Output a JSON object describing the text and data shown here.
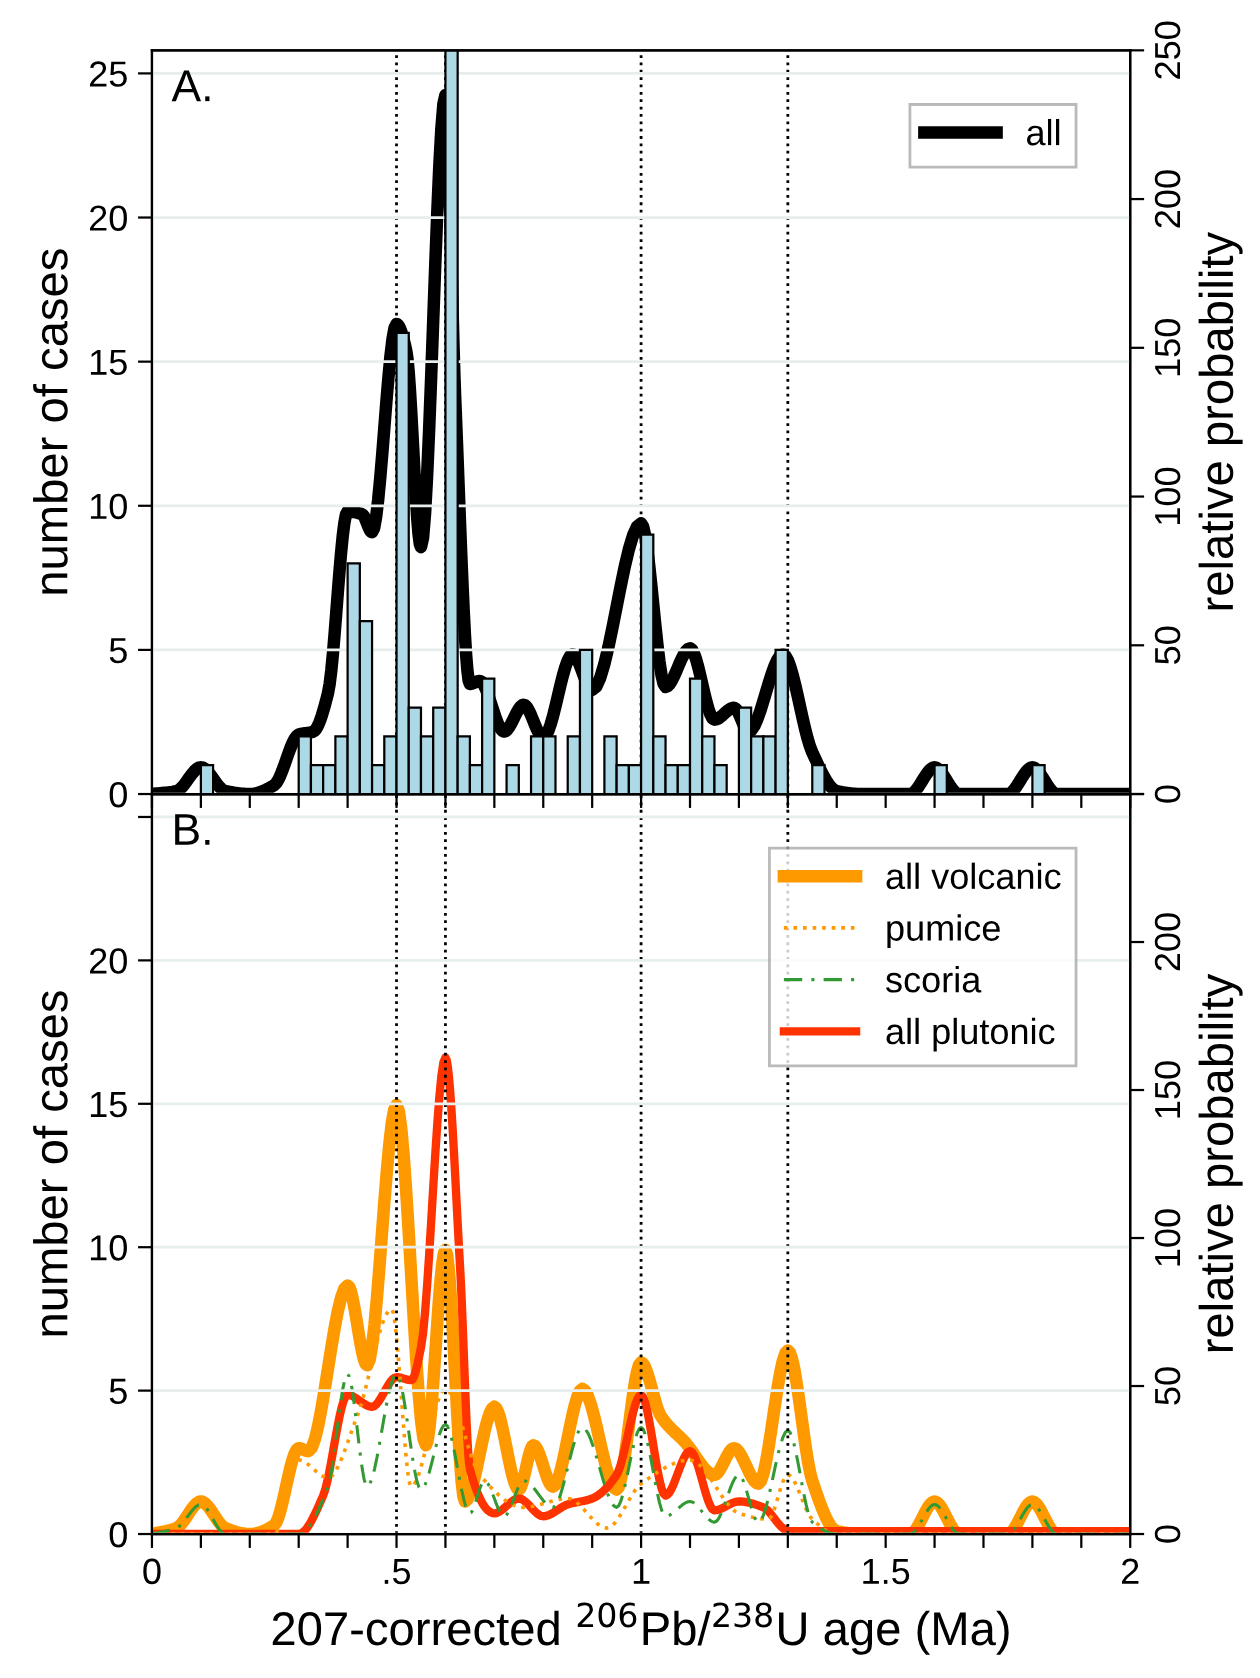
{
  "chart_data": [
    {
      "type": "histogram",
      "ylabel": "number of cases",
      "y2label": "relative probability",
      "annotations": [
        "A."
      ],
      "xlim": [
        0,
        2
      ],
      "xticks": [
        {
          "value": 0,
          "label": null
        },
        {
          "value": 0.1,
          "label": null
        },
        {
          "value": 0.2,
          "label": null
        },
        {
          "value": 0.3,
          "label": null
        },
        {
          "value": 0.4,
          "label": null
        },
        {
          "value": 0.5,
          "label": null
        },
        {
          "value": 0.6,
          "label": null
        },
        {
          "value": 0.7,
          "label": null
        },
        {
          "value": 0.8,
          "label": null
        },
        {
          "value": 0.9,
          "label": null
        },
        {
          "value": 1,
          "label": null
        },
        {
          "value": 1.1,
          "label": null
        },
        {
          "value": 1.2,
          "label": null
        },
        {
          "value": 1.3,
          "label": null
        },
        {
          "value": 1.4,
          "label": null
        },
        {
          "value": 1.5,
          "label": null
        },
        {
          "value": 1.6,
          "label": null
        },
        {
          "value": 1.7,
          "label": null
        },
        {
          "value": 1.8,
          "label": null
        },
        {
          "value": 1.9,
          "label": null
        },
        {
          "value": 2,
          "label": null
        }
      ],
      "ylim": [
        0,
        25.8
      ],
      "yticks": [
        0,
        5,
        10,
        15,
        20,
        25
      ],
      "y2lim": [
        0,
        250
      ],
      "y2ticks": [
        0,
        50,
        100,
        150,
        200,
        250
      ],
      "tick_labels": "y",
      "grid": "y",
      "legend": "top right",
      "ref_lines": [
        {
          "axis": "x",
          "value": 0.5,
          "color": "#000000",
          "line_style": "dotted"
        },
        {
          "axis": "x",
          "value": 0.6,
          "color": "#000000",
          "line_style": "dotted"
        },
        {
          "axis": "x",
          "value": 1.0,
          "color": "#000000",
          "line_style": "dotted"
        },
        {
          "axis": "x",
          "value": 1.3,
          "color": "#000000",
          "line_style": "dotted"
        }
      ],
      "series": [
        {
          "type": "histogram",
          "color": "#add8e6",
          "bins": [
            0,
            0.025,
            0.05,
            0.075,
            0.1,
            0.125,
            0.15,
            0.175,
            0.2,
            0.225,
            0.25,
            0.275,
            0.3,
            0.325,
            0.35,
            0.375,
            0.4,
            0.425,
            0.45,
            0.475,
            0.5,
            0.525,
            0.55,
            0.575,
            0.6,
            0.625,
            0.65,
            0.675,
            0.7,
            0.725,
            0.75,
            0.775,
            0.8,
            0.825,
            0.85,
            0.875,
            0.9,
            0.925,
            0.95,
            0.975,
            1.0,
            1.025,
            1.05,
            1.075,
            1.1,
            1.125,
            1.15,
            1.175,
            1.2,
            1.225,
            1.25,
            1.275,
            1.3,
            1.325,
            1.35,
            1.375,
            1.4,
            1.425,
            1.45,
            1.475,
            1.5,
            1.525,
            1.55,
            1.575,
            1.6,
            1.625,
            1.65,
            1.675,
            1.7,
            1.725,
            1.75,
            1.775,
            1.8,
            1.825,
            1.85,
            1.875,
            1.9,
            1.925,
            1.95,
            1.975,
            2.0
          ],
          "values": [
            0,
            0,
            0,
            0,
            1,
            0,
            0,
            0,
            0,
            0,
            0,
            0,
            2,
            1,
            1,
            2,
            8,
            6,
            1,
            2,
            16,
            3,
            2,
            3,
            25.8,
            2,
            1,
            4,
            0,
            1,
            0,
            2,
            2,
            0,
            2,
            5,
            0,
            2,
            1,
            1,
            9,
            2,
            1,
            1,
            4,
            2,
            1,
            0,
            3,
            2,
            2,
            5,
            0,
            0,
            1,
            0,
            0,
            0,
            0,
            0,
            0,
            0,
            0,
            0,
            1,
            0,
            0,
            0,
            0,
            0,
            0,
            0,
            1,
            0,
            0,
            0,
            0,
            0,
            0,
            0
          ]
        },
        {
          "name": "all",
          "type": "line",
          "axis": "y2",
          "color": "#000000",
          "line_style": "solid",
          "x": [
            0,
            0.05,
            0.1,
            0.15,
            0.2,
            0.25,
            0.3,
            0.33,
            0.36,
            0.4,
            0.43,
            0.45,
            0.5,
            0.52,
            0.55,
            0.6,
            0.62,
            0.65,
            0.67,
            0.72,
            0.76,
            0.8,
            0.86,
            0.9,
            1.0,
            1.05,
            1.1,
            1.15,
            1.19,
            1.22,
            1.29,
            1.35,
            1.4,
            1.45,
            1.55,
            1.6,
            1.65,
            1.75,
            1.8,
            1.85,
            2.0
          ],
          "values": [
            0,
            1,
            9,
            1,
            0,
            3,
            20,
            21,
            34,
            95,
            94,
            88,
            158,
            149,
            83,
            235,
            133,
            37,
            38,
            21,
            30,
            19,
            47,
            35,
            91,
            36,
            49,
            25,
            29,
            21,
            47,
            14,
            1,
            0,
            0,
            9,
            0,
            0,
            9,
            0,
            0
          ]
        }
      ]
    },
    {
      "type": "line",
      "xlabel": "207-corrected $^{206}$Pb/$^{238}$U age (Ma)",
      "ylabel": "number of cases",
      "y2label": "relative probability",
      "annotations": [
        "B."
      ],
      "xlim": [
        0,
        2
      ],
      "xticks": [
        {
          "value": 0,
          "label": "0"
        },
        {
          "value": 0.1,
          "label": null
        },
        {
          "value": 0.2,
          "label": null
        },
        {
          "value": 0.3,
          "label": null
        },
        {
          "value": 0.4,
          "label": null
        },
        {
          "value": 0.5,
          "label": ".5"
        },
        {
          "value": 0.6,
          "label": null
        },
        {
          "value": 0.7,
          "label": null
        },
        {
          "value": 0.8,
          "label": null
        },
        {
          "value": 0.9,
          "label": null
        },
        {
          "value": 1,
          "label": "1"
        },
        {
          "value": 1.1,
          "label": null
        },
        {
          "value": 1.2,
          "label": null
        },
        {
          "value": 1.3,
          "label": null
        },
        {
          "value": 1.4,
          "label": null
        },
        {
          "value": 1.5,
          "label": "1.5"
        },
        {
          "value": 1.6,
          "label": null
        },
        {
          "value": 1.7,
          "label": null
        },
        {
          "value": 1.8,
          "label": null
        },
        {
          "value": 1.9,
          "label": null
        },
        {
          "value": 2,
          "label": "2"
        }
      ],
      "ylim": [
        0,
        25.8
      ],
      "yticks": [
        0,
        5,
        10,
        15,
        20,
        {
          "value": 25,
          "label": null
        }
      ],
      "y2lim": [
        0,
        250
      ],
      "y2ticks": [
        0,
        50,
        100,
        150,
        200,
        {
          "value": 250,
          "label": null
        }
      ],
      "grid": "y",
      "legend": "top right",
      "ref_lines": [
        {
          "axis": "x",
          "value": 0.5,
          "color": "#000000",
          "line_style": "dotted"
        },
        {
          "axis": "x",
          "value": 0.6,
          "color": "#000000",
          "line_style": "dotted"
        },
        {
          "axis": "x",
          "value": 1.0,
          "color": "#000000",
          "line_style": "dotted"
        },
        {
          "axis": "x",
          "value": 1.3,
          "color": "#000000",
          "line_style": "dotted"
        }
      ],
      "series": [
        {
          "name": "all volcanic",
          "axis": "y2",
          "color": "#ff9900",
          "line_style": "solid",
          "x": [
            0,
            0.05,
            0.1,
            0.15,
            0.2,
            0.25,
            0.3,
            0.32,
            0.4,
            0.44,
            0.5,
            0.56,
            0.6,
            0.64,
            0.7,
            0.75,
            0.78,
            0.82,
            0.88,
            0.95,
            1.0,
            1.04,
            1.09,
            1.15,
            1.19,
            1.24,
            1.3,
            1.35,
            1.4,
            1.45,
            1.55,
            1.6,
            1.65,
            1.75,
            1.8,
            1.85,
            2.0
          ],
          "values": [
            0,
            2,
            11,
            2,
            0,
            3,
            29,
            28,
            84,
            57,
            145,
            30,
            96,
            11,
            43,
            15,
            30,
            16,
            49,
            15,
            58,
            40,
            31,
            20,
            29,
            17,
            62,
            18,
            1,
            0,
            0,
            11,
            0,
            0,
            11,
            0,
            0
          ]
        },
        {
          "name": "pumice",
          "axis": "y2",
          "color": "#ff9900",
          "line_style": "dotted",
          "x": [
            0,
            0.25,
            0.3,
            0.36,
            0.42,
            0.49,
            0.53,
            0.6,
            0.67,
            0.76,
            0.85,
            0.93,
            1.0,
            1.1,
            1.2,
            1.26,
            1.3,
            1.35,
            1.4,
            2.0
          ],
          "values": [
            0,
            0,
            25,
            19,
            40,
            76,
            16,
            49,
            20,
            9,
            12,
            2,
            17,
            25,
            7,
            5,
            20,
            5,
            0,
            0
          ]
        },
        {
          "name": "scoria",
          "axis": "y2",
          "color": "#339933",
          "line_style": "dashed",
          "x": [
            0,
            0.05,
            0.1,
            0.15,
            0.3,
            0.36,
            0.4,
            0.44,
            0.5,
            0.55,
            0.6,
            0.65,
            0.68,
            0.72,
            0.76,
            0.82,
            0.88,
            0.95,
            1.0,
            1.05,
            1.1,
            1.15,
            1.2,
            1.24,
            1.3,
            1.35,
            1.4,
            1.55,
            1.6,
            1.65,
            1.75,
            1.8,
            1.85,
            2.0
          ],
          "values": [
            0,
            2,
            10,
            0,
            0,
            16,
            54,
            16,
            54,
            15,
            37,
            7,
            18,
            6,
            18,
            9,
            36,
            9,
            36,
            6,
            11,
            4,
            20,
            4,
            35,
            4,
            0,
            0,
            10,
            0,
            0,
            10,
            0,
            0
          ]
        },
        {
          "name": "all plutonic",
          "axis": "y2",
          "color": "#ff3300",
          "line_style": "solid",
          "x": [
            0,
            0.3,
            0.35,
            0.4,
            0.45,
            0.5,
            0.53,
            0.55,
            0.6,
            0.63,
            0.65,
            0.7,
            0.75,
            0.8,
            0.85,
            0.9,
            0.95,
            1.0,
            1.05,
            1.1,
            1.15,
            1.2,
            1.25,
            1.29,
            1.3,
            1.35,
            2.0
          ],
          "values": [
            0,
            0,
            13,
            47,
            43,
            53,
            52,
            63,
            161,
            90,
            22,
            7,
            12,
            6,
            10,
            12,
            20,
            47,
            13,
            28,
            8,
            11,
            9,
            2,
            1,
            1,
            1
          ]
        }
      ]
    }
  ]
}
